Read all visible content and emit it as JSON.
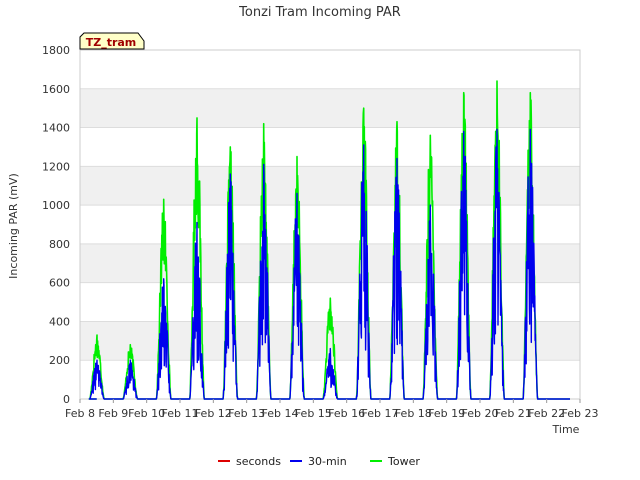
{
  "chart_data": {
    "type": "line",
    "title": "Tonzi Tram Incoming PAR",
    "xlabel": "Time",
    "ylabel": "Incoming PAR (mV)",
    "site_tag": "TZ_tram",
    "ylim": [
      0,
      1800
    ],
    "yticks": [
      0,
      200,
      400,
      600,
      800,
      1000,
      1200,
      1400,
      1600,
      1800
    ],
    "xlim": [
      "Feb 8",
      "Feb 23"
    ],
    "xtick_labels": [
      "Feb 8",
      "Feb 9",
      "Feb 10",
      "Feb 11",
      "Feb 12",
      "Feb 13",
      "Feb 14",
      "Feb 15",
      "Feb 16",
      "Feb 17",
      "Feb 18",
      "Feb 19",
      "Feb 20",
      "Feb 21",
      "Feb 22",
      "Feb 23"
    ],
    "grid": "horizontal bands",
    "legend": "bottom",
    "series": [
      {
        "name": "seconds",
        "color": "#dd0000",
        "daily_peaks": []
      },
      {
        "name": "30-min",
        "color": "#0000ee",
        "daily_peaks": [
          {
            "day": "Feb 8",
            "peak": 200
          },
          {
            "day": "Feb 9",
            "peak": 200
          },
          {
            "day": "Feb 10",
            "peak": 620
          },
          {
            "day": "Feb 11",
            "peak": 910
          },
          {
            "day": "Feb 12",
            "peak": 1160
          },
          {
            "day": "Feb 13",
            "peak": 1210
          },
          {
            "day": "Feb 14",
            "peak": 1060
          },
          {
            "day": "Feb 15",
            "peak": 260
          },
          {
            "day": "Feb 16",
            "peak": 1310
          },
          {
            "day": "Feb 17",
            "peak": 1240
          },
          {
            "day": "Feb 18",
            "peak": 1000
          },
          {
            "day": "Feb 19",
            "peak": 1380
          },
          {
            "day": "Feb 20",
            "peak": 1390
          },
          {
            "day": "Feb 21",
            "peak": 1390
          }
        ]
      },
      {
        "name": "Tower",
        "color": "#00ee00",
        "daily_peaks": [
          {
            "day": "Feb 8",
            "peak": 330
          },
          {
            "day": "Feb 9",
            "peak": 280
          },
          {
            "day": "Feb 10",
            "peak": 1030
          },
          {
            "day": "Feb 11",
            "peak": 1450
          },
          {
            "day": "Feb 12",
            "peak": 1300
          },
          {
            "day": "Feb 13",
            "peak": 1420
          },
          {
            "day": "Feb 14",
            "peak": 1250
          },
          {
            "day": "Feb 15",
            "peak": 520
          },
          {
            "day": "Feb 16",
            "peak": 1500
          },
          {
            "day": "Feb 17",
            "peak": 1430
          },
          {
            "day": "Feb 18",
            "peak": 1360
          },
          {
            "day": "Feb 19",
            "peak": 1580
          },
          {
            "day": "Feb 20",
            "peak": 1640
          },
          {
            "day": "Feb 21",
            "peak": 1580
          }
        ]
      }
    ]
  }
}
